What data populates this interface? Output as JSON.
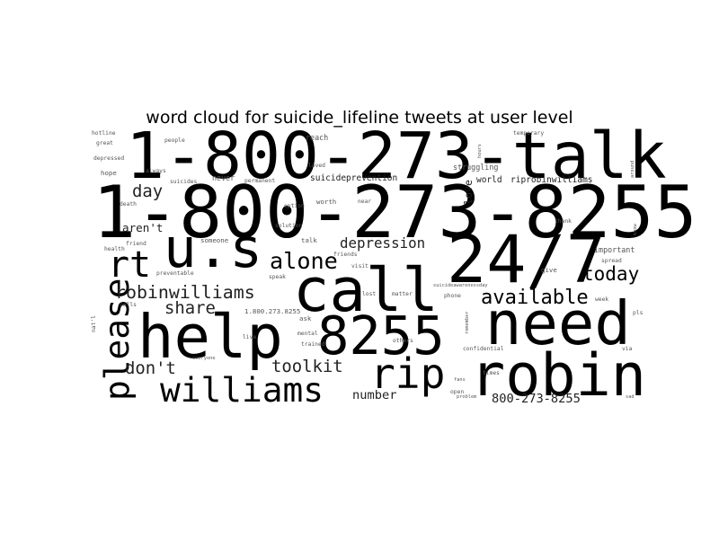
{
  "chart_data": {
    "type": "wordcloud",
    "title": "word cloud for suicide_lifeline tweets at user level",
    "words": [
      {
        "text": "1-800-273-talk",
        "weight": 68
      },
      {
        "text": "1-800-273-8255",
        "weight": 76
      },
      {
        "text": "24/7",
        "weight": 70
      },
      {
        "text": "call",
        "weight": 64
      },
      {
        "text": "help",
        "weight": 64
      },
      {
        "text": "need",
        "weight": 64
      },
      {
        "text": "8255",
        "weight": 56
      },
      {
        "text": "robin",
        "weight": 62
      },
      {
        "text": "u.s",
        "weight": 58
      },
      {
        "text": "rip",
        "weight": 44
      },
      {
        "text": "rt",
        "weight": 38
      },
      {
        "text": "please",
        "weight": 36
      },
      {
        "text": "williams",
        "weight": 36
      },
      {
        "text": "alone",
        "weight": 24
      },
      {
        "text": "robinwilliams",
        "weight": 19
      },
      {
        "text": "available",
        "weight": 21
      },
      {
        "text": "today",
        "weight": 20
      },
      {
        "text": "share",
        "weight": 18
      },
      {
        "text": "toolkit",
        "weight": 18
      },
      {
        "text": "don't",
        "weight": 18
      },
      {
        "text": "day",
        "weight": 18
      },
      {
        "text": "depression",
        "weight": 15
      },
      {
        "text": "number",
        "weight": 13
      },
      {
        "text": "800-273-8255",
        "weight": 13
      },
      {
        "text": "aren't",
        "weight": 12
      },
      {
        "text": "love",
        "weight": 11
      },
      {
        "text": "suicideprevention",
        "weight": 9
      },
      {
        "text": "world",
        "weight": 9
      },
      {
        "text": "riprobinwilliams",
        "weight": 9
      },
      {
        "text": "struggling",
        "weight": 8
      },
      {
        "text": "reach",
        "weight": 8
      },
      {
        "text": "never",
        "weight": 8
      },
      {
        "text": "worth",
        "weight": 7
      },
      {
        "text": "important",
        "weight": 8
      },
      {
        "text": "give",
        "weight": 7
      },
      {
        "text": "matter",
        "weight": 6
      },
      {
        "text": "lost",
        "weight": 6
      },
      {
        "text": "phone",
        "weight": 6
      },
      {
        "text": "speak",
        "weight": 6
      },
      {
        "text": "talk",
        "weight": 7
      },
      {
        "text": "visit",
        "weight": 6
      },
      {
        "text": "someone",
        "weight": 7
      },
      {
        "text": "1.800.273.8255",
        "weight": 7
      },
      {
        "text": "ask",
        "weight": 7
      },
      {
        "text": "mental",
        "weight": 6
      },
      {
        "text": "trained",
        "weight": 6
      },
      {
        "text": "live",
        "weight": 6
      },
      {
        "text": "others",
        "weight": 6
      },
      {
        "text": "confidential",
        "weight": 6
      },
      {
        "text": "times",
        "weight": 6
      },
      {
        "text": "open",
        "weight": 6
      },
      {
        "text": "problem",
        "weight": 5
      },
      {
        "text": "fans",
        "weight": 5
      },
      {
        "text": "hotline",
        "weight": 6
      },
      {
        "text": "great",
        "weight": 6
      },
      {
        "text": "people",
        "weight": 6
      },
      {
        "text": "depressed",
        "weight": 6
      },
      {
        "text": "hope",
        "weight": 7
      },
      {
        "text": "always",
        "weight": 6
      },
      {
        "text": "suicides",
        "weight": 6
      },
      {
        "text": "permanent",
        "weight": 6
      },
      {
        "text": "loved",
        "weight": 6
      },
      {
        "text": "option",
        "weight": 6
      },
      {
        "text": "solution",
        "weight": 6
      },
      {
        "text": "health",
        "weight": 6
      },
      {
        "text": "friend",
        "weight": 6
      },
      {
        "text": "friends",
        "weight": 6
      },
      {
        "text": "death",
        "weight": 6
      },
      {
        "text": "preventable",
        "weight": 6
      },
      {
        "text": "calls",
        "weight": 6
      },
      {
        "text": "everyone",
        "weight": 5
      },
      {
        "text": "temporary",
        "weight": 6
      },
      {
        "text": "thank",
        "weight": 6
      },
      {
        "text": "spread",
        "weight": 6
      },
      {
        "text": "week",
        "weight": 6
      },
      {
        "text": "via",
        "weight": 6
      },
      {
        "text": "sad",
        "weight": 5
      },
      {
        "text": "pls",
        "weight": 6
      },
      {
        "text": "near",
        "weight": 6
      },
      {
        "text": "remember",
        "weight": 5
      },
      {
        "text": "suicideawarenessday",
        "weight": 5
      },
      {
        "text": "hours",
        "weight": 5
      },
      {
        "text": "around",
        "weight": 5
      },
      {
        "text": "know",
        "weight": 5
      },
      {
        "text": "nat'l",
        "weight": 6
      }
    ]
  }
}
